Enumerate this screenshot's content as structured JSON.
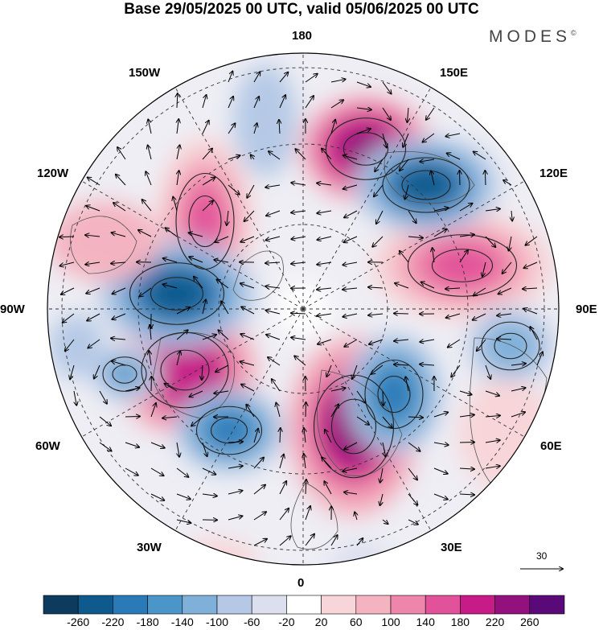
{
  "title": "Base 29/05/2025 00 UTC, valid 05/06/2025 00 UTC",
  "brand": "MODES",
  "brand_mark": "©",
  "longitude_labels": {
    "top": "180",
    "bottom": "0",
    "left": "90W",
    "right": "90E",
    "upper_left_1": "150W",
    "upper_left_2": "120W",
    "upper_right_1": "150E",
    "upper_right_2": "120E",
    "lower_left_1": "60W",
    "lower_left_2": "30W",
    "lower_right_1": "60E",
    "lower_right_2": "30E"
  },
  "reference_vector": {
    "label": "30"
  },
  "colorbar": {
    "colors": [
      "#0d3b5e",
      "#0f5a8c",
      "#2a7ab8",
      "#4b96c9",
      "#7fb0d9",
      "#b5c9e6",
      "#dcdfee",
      "#ffffff",
      "#f8d5d8",
      "#f4b3c0",
      "#ee86ab",
      "#e2529a",
      "#c71b88",
      "#93117c",
      "#5a0a78"
    ],
    "ticks": [
      "-260",
      "-220",
      "-180",
      "-140",
      "-100",
      "-60",
      "-20",
      "20",
      "60",
      "100",
      "140",
      "180",
      "220",
      "260"
    ]
  },
  "anomaly_centers": [
    {
      "sign": "positive",
      "value": 240
    },
    {
      "sign": "positive",
      "value": 220
    },
    {
      "sign": "positive",
      "value": 230
    },
    {
      "sign": "positive",
      "value": 150
    },
    {
      "sign": "positive",
      "value": 160
    },
    {
      "sign": "negative",
      "value": -220
    },
    {
      "sign": "negative",
      "value": -230
    },
    {
      "sign": "negative",
      "value": -200
    },
    {
      "sign": "negative",
      "value": -190
    },
    {
      "sign": "negative",
      "value": -120
    },
    {
      "sign": "negative",
      "value": -150
    }
  ]
}
